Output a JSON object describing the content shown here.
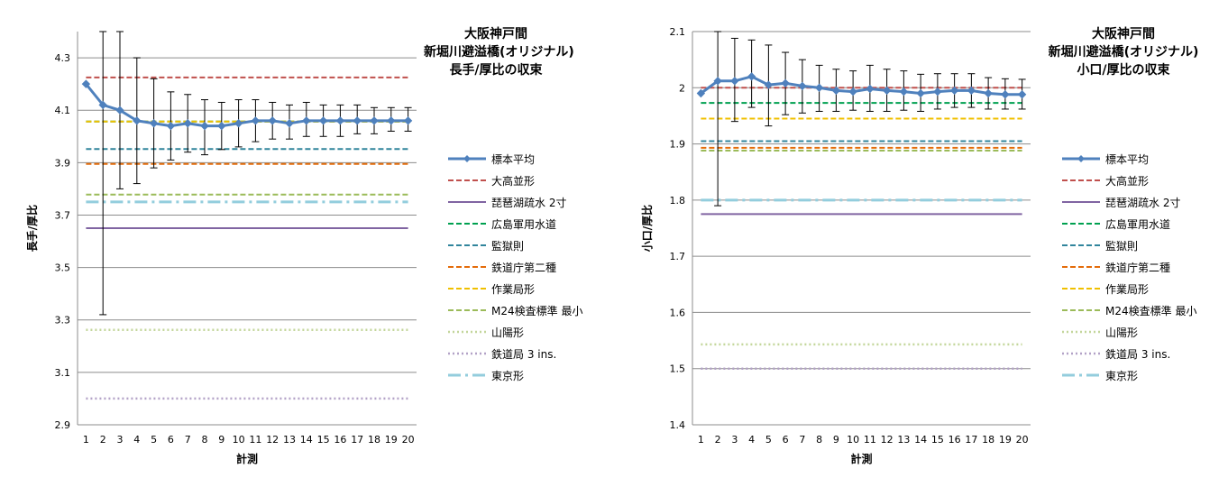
{
  "chart_data": [
    {
      "type": "line",
      "title_lines": [
        "大阪神戸間",
        "新堀川避溢橋(オリジナル)",
        "長手/厚比の収束"
      ],
      "xlabel": "計測",
      "ylabel": "長手/厚比",
      "ylim": [
        2.9,
        4.4
      ],
      "yticks": [
        2.9,
        3.1,
        3.3,
        3.5,
        3.7,
        3.9,
        4.1,
        4.3
      ],
      "ytick_labels": [
        "2.9",
        "3.1",
        "3.3",
        "3.5",
        "3.7",
        "3.9",
        "4.1",
        "4.3"
      ],
      "x": [
        1,
        2,
        3,
        4,
        5,
        6,
        7,
        8,
        9,
        10,
        11,
        12,
        13,
        14,
        15,
        16,
        17,
        18,
        19,
        20
      ],
      "x_labels": [
        "1",
        "2",
        "3",
        "4",
        "5",
        "6",
        "7",
        "8",
        "9",
        "10",
        "11",
        "12",
        "13",
        "14",
        "15",
        "16",
        "17",
        "18",
        "19",
        "20"
      ],
      "grid": true,
      "legend_position": "right",
      "series": [
        {
          "name": "標本平均",
          "kind": "marker-line",
          "color": "#4f81bd",
          "values": [
            4.2,
            4.12,
            4.1,
            4.06,
            4.05,
            4.04,
            4.05,
            4.04,
            4.04,
            4.05,
            4.06,
            4.06,
            4.05,
            4.06,
            4.06,
            4.06,
            4.06,
            4.06,
            4.06,
            4.06
          ],
          "error_low": [
            null,
            3.32,
            3.8,
            3.82,
            3.88,
            3.91,
            3.94,
            3.93,
            3.95,
            3.96,
            3.98,
            3.99,
            3.99,
            4.0,
            4.0,
            4.0,
            4.01,
            4.01,
            4.02,
            4.02
          ],
          "error_high": [
            null,
            4.4,
            4.4,
            4.3,
            4.22,
            4.17,
            4.16,
            4.14,
            4.13,
            4.14,
            4.14,
            4.13,
            4.12,
            4.13,
            4.12,
            4.12,
            4.12,
            4.11,
            4.11,
            4.11
          ]
        },
        {
          "name": "大高並形",
          "kind": "dash",
          "color": "#c0504d",
          "value": 4.225
        },
        {
          "name": "琵琶湖疏水 2寸",
          "kind": "solid",
          "color": "#8064a2",
          "value": 3.65
        },
        {
          "name": "広島軍用水道",
          "kind": "dash",
          "color": "#00a050",
          "value": 4.057
        },
        {
          "name": "監獄則",
          "kind": "dash",
          "color": "#31859c",
          "value": 3.952
        },
        {
          "name": "鉄道庁第二種",
          "kind": "dash",
          "color": "#e46c0a",
          "value": 3.895
        },
        {
          "name": "作業局形",
          "kind": "dash",
          "color": "#f0c000",
          "value": 4.057
        },
        {
          "name": "M24検査標準 最小",
          "kind": "dash",
          "color": "#9bbb59",
          "value": 3.778
        },
        {
          "name": "山陽形",
          "kind": "dot",
          "color": "#c3d69b",
          "value": 3.262
        },
        {
          "name": "鉄道局 3 ins.",
          "kind": "dot",
          "color": "#b3a2c7",
          "value": 3.0
        },
        {
          "name": "東京形",
          "kind": "dashdot",
          "color": "#93cddd",
          "value": 3.75
        }
      ]
    },
    {
      "type": "line",
      "title_lines": [
        "大阪神戸間",
        "新堀川避溢橋(オリジナル)",
        "小口/厚比の収束"
      ],
      "xlabel": "計測",
      "ylabel": "小口/厚比",
      "ylim": [
        1.4,
        2.1
      ],
      "yticks": [
        1.4,
        1.5,
        1.6,
        1.7,
        1.8,
        1.9,
        2.0,
        2.1
      ],
      "ytick_labels": [
        "1.4",
        "1.5",
        "1.6",
        "1.7",
        "1.8",
        "1.9",
        "2",
        "2.1"
      ],
      "x": [
        1,
        2,
        3,
        4,
        5,
        6,
        7,
        8,
        9,
        10,
        11,
        12,
        13,
        14,
        15,
        16,
        17,
        18,
        19,
        20
      ],
      "x_labels": [
        "1",
        "2",
        "3",
        "4",
        "5",
        "6",
        "7",
        "8",
        "9",
        "10",
        "11",
        "12",
        "13",
        "14",
        "15",
        "16",
        "17",
        "18",
        "19",
        "20"
      ],
      "grid": true,
      "legend_position": "right",
      "series": [
        {
          "name": "標本平均",
          "kind": "marker-line",
          "color": "#4f81bd",
          "values": [
            1.99,
            2.012,
            2.012,
            2.02,
            2.005,
            2.008,
            2.003,
            2.0,
            1.995,
            1.993,
            1.998,
            1.995,
            1.993,
            1.99,
            1.993,
            1.995,
            1.995,
            1.99,
            1.988,
            1.988
          ],
          "error_low": [
            null,
            1.79,
            1.94,
            1.965,
            1.932,
            1.952,
            1.955,
            1.958,
            1.958,
            1.96,
            1.958,
            1.958,
            1.96,
            1.958,
            1.962,
            1.965,
            1.965,
            1.962,
            1.962,
            1.962
          ],
          "error_high": [
            null,
            2.1,
            2.088,
            2.085,
            2.076,
            2.063,
            2.05,
            2.04,
            2.033,
            2.03,
            2.04,
            2.033,
            2.03,
            2.024,
            2.025,
            2.025,
            2.025,
            2.018,
            2.016,
            2.015
          ]
        },
        {
          "name": "大高並形",
          "kind": "dash",
          "color": "#c0504d",
          "value": 2.0
        },
        {
          "name": "琵琶湖疏水 2寸",
          "kind": "solid",
          "color": "#8064a2",
          "value": 1.775
        },
        {
          "name": "広島軍用水道",
          "kind": "dash",
          "color": "#00a050",
          "value": 1.973
        },
        {
          "name": "監獄則",
          "kind": "dash",
          "color": "#31859c",
          "value": 1.905
        },
        {
          "name": "鉄道庁第二種",
          "kind": "dash",
          "color": "#e46c0a",
          "value": 1.893
        },
        {
          "name": "作業局形",
          "kind": "dash",
          "color": "#f0c000",
          "value": 1.945
        },
        {
          "name": "M24検査標準 最小",
          "kind": "dash",
          "color": "#9bbb59",
          "value": 1.888
        },
        {
          "name": "山陽形",
          "kind": "dot",
          "color": "#c3d69b",
          "value": 1.543
        },
        {
          "name": "鉄道局 3 ins.",
          "kind": "dot",
          "color": "#b3a2c7",
          "value": 1.5
        },
        {
          "name": "東京形",
          "kind": "dashdot",
          "color": "#93cddd",
          "value": 1.8
        }
      ]
    }
  ]
}
